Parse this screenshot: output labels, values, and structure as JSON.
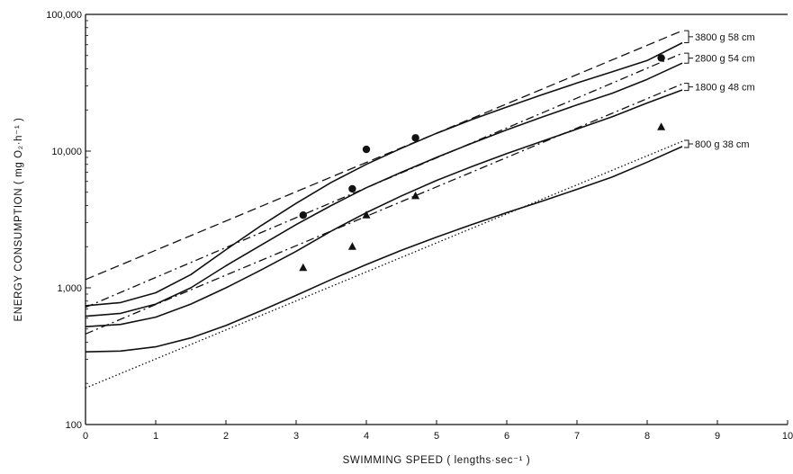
{
  "chart_data": {
    "type": "line",
    "title": "",
    "xlabel": "SWIMMING SPEED ( lengths·sec⁻¹ )",
    "ylabel": "ENERGY CONSUMPTION ( mg O₂·h⁻¹ )",
    "xlim": [
      0,
      10
    ],
    "ylim": [
      100,
      100000
    ],
    "y_scale": "log",
    "grid": false,
    "x_ticks": [
      "0",
      "1",
      "2",
      "3",
      "4",
      "5",
      "6",
      "7",
      "8",
      "9",
      "10"
    ],
    "y_ticks": [
      {
        "value": 100,
        "label": "100"
      },
      {
        "value": 1000,
        "label": "1,000"
      },
      {
        "value": 10000,
        "label": "10,000"
      },
      {
        "value": 100000,
        "label": "100,000"
      }
    ],
    "group_labels": [
      {
        "label": "3800 g  58 cm",
        "y_top": 76000,
        "y_bottom": 62000
      },
      {
        "label": "2800 g  54 cm",
        "y_top": 52000,
        "y_bottom": 44000
      },
      {
        "label": "1800 g  48 cm",
        "y_top": 31000,
        "y_bottom": 28000
      },
      {
        "label": "800 g  38 cm",
        "y_top": 11800,
        "y_bottom": 10800
      }
    ],
    "series": [
      {
        "style": "solid",
        "x": [
          0,
          0.5,
          1,
          1.5,
          2,
          2.5,
          3,
          3.5,
          4,
          4.5,
          5,
          5.5,
          6,
          6.5,
          7,
          7.5,
          8,
          8.5
        ],
        "y": [
          340,
          345,
          370,
          430,
          530,
          680,
          880,
          1150,
          1480,
          1880,
          2350,
          2900,
          3550,
          4300,
          5250,
          6450,
          8300,
          10800
        ]
      },
      {
        "style": "solid",
        "x": [
          0,
          0.5,
          1,
          1.5,
          2,
          2.5,
          3,
          3.5,
          4,
          4.5,
          5,
          5.5,
          6,
          6.5,
          7,
          7.5,
          8,
          8.5
        ],
        "y": [
          520,
          540,
          610,
          760,
          1000,
          1350,
          1850,
          2600,
          3550,
          4700,
          6100,
          7700,
          9600,
          11800,
          14500,
          17800,
          22500,
          28000
        ]
      },
      {
        "style": "solid",
        "x": [
          0,
          0.5,
          1,
          1.5,
          2,
          2.5,
          3,
          3.5,
          4,
          4.5,
          5,
          5.5,
          6,
          6.5,
          7,
          7.5,
          8,
          8.5
        ],
        "y": [
          620,
          650,
          760,
          1000,
          1450,
          2050,
          2900,
          4000,
          5400,
          7000,
          9000,
          11400,
          14300,
          17700,
          21800,
          26500,
          33500,
          44000
        ]
      },
      {
        "style": "solid",
        "x": [
          0,
          0.5,
          1,
          1.5,
          2,
          2.5,
          3,
          3.5,
          4,
          4.5,
          5,
          5.5,
          6,
          6.5,
          7,
          7.5,
          8,
          8.5
        ],
        "y": [
          740,
          780,
          920,
          1250,
          1900,
          2850,
          4150,
          5900,
          8000,
          10500,
          13500,
          17000,
          21000,
          25800,
          31500,
          38000,
          46000,
          62000
        ]
      },
      {
        "style": "dotted",
        "x": [
          0,
          8.5
        ],
        "y": [
          185,
          11800
        ]
      },
      {
        "style": "dashdot",
        "x": [
          0,
          8.5
        ],
        "y": [
          460,
          31000
        ]
      },
      {
        "style": "dashdot",
        "x": [
          0,
          8.5
        ],
        "y": [
          720,
          52000
        ]
      },
      {
        "style": "dashed",
        "x": [
          0,
          8.5
        ],
        "y": [
          1150,
          76000
        ]
      }
    ],
    "points_circle": {
      "x": [
        3.1,
        3.8,
        4.0,
        4.7,
        8.2
      ],
      "y": [
        3400,
        5300,
        10300,
        12500,
        48000
      ]
    },
    "points_triangle": {
      "x": [
        3.1,
        3.8,
        4.0,
        4.7,
        8.2
      ],
      "y": [
        1400,
        2000,
        3400,
        4700,
        15000
      ]
    }
  }
}
